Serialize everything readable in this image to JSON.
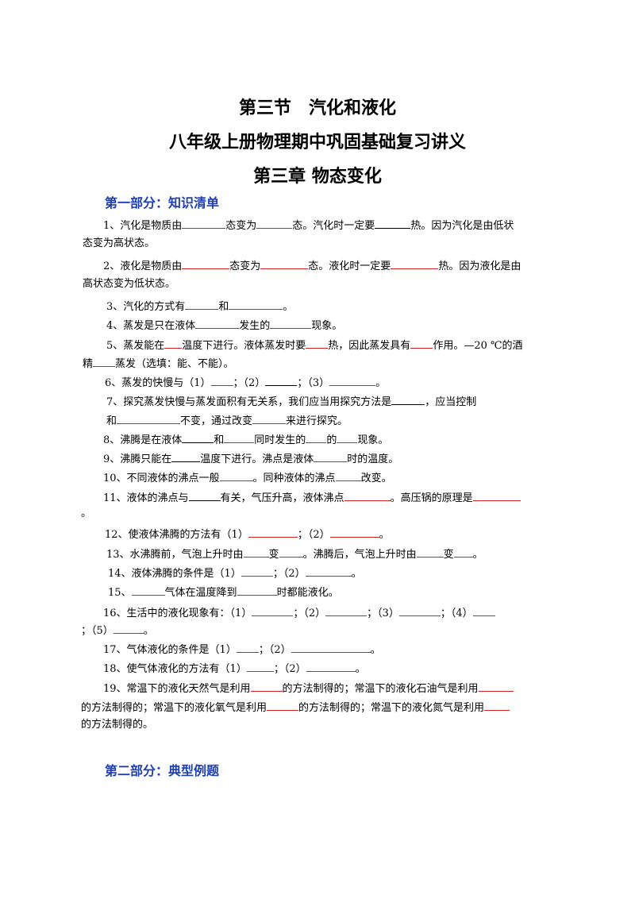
{
  "titles": {
    "t1": "第三节　汽化和液化",
    "t2": "八年级上册物理期中巩固基础复习讲义",
    "t3": "第三章 物态变化"
  },
  "sections": {
    "s1": "第一部分：知识清单",
    "s2": "第二部分：典型例题"
  },
  "q": {
    "q1": {
      "a": "1、汽化是物质由",
      "b": "态变为",
      "c": "态。汽化时一定要",
      "d": "热。因为汽化是由低状",
      "e": "态变为高状态。"
    },
    "q2": {
      "a": "2、液化是物质由",
      "b": "态变为",
      "c": "态。液化时一定要",
      "d": "热。因为液化是由",
      "e": "高状态变为低状态。"
    },
    "q3": {
      "a": "3、汽化的方式有",
      "b": "和",
      "c": "。"
    },
    "q4": {
      "a": "4、蒸发是只在液体",
      "b": "发生的",
      "c": "现象。"
    },
    "q5": {
      "a": "5、蒸发能在",
      "b": "温度下进行。液体蒸发时要",
      "c": "热，因此蒸发具有",
      "d": "作用。—20 ℃的酒",
      "e": "精",
      "f": "蒸发（选填：能、不能）。"
    },
    "q6": {
      "a": "6、蒸发的快慢与（1）",
      "b": "；（2）",
      "c": "；（3）",
      "d": "。"
    },
    "q7": {
      "a": "7、探究蒸发快慢与蒸发面积有无关系，我们应当用探究方法是",
      "b": "，应当控制",
      "c": "和",
      "d": "不变，通过改变",
      "e": "来进行探究。"
    },
    "q8": {
      "a": "8、沸腾是在液体",
      "b": "和",
      "c": "同时发生的",
      "d": "的",
      "e": "现象。"
    },
    "q9": {
      "a": "9、沸腾只能在",
      "b": "温度下进行。沸点是液体",
      "c": "时的温度。"
    },
    "q10": {
      "a": "10、不同液体的沸点一般",
      "b": "。同种液体的沸点",
      "c": "改变。"
    },
    "q11": {
      "a": "11、液体的沸点与",
      "b": "有关，气压升高，液体沸点",
      "c": "。高压锅的原理是",
      "d": "。"
    },
    "q12": {
      "a": "12、使液体沸腾的方法有（1）",
      "b": "；（2）",
      "c": "。"
    },
    "q13": {
      "a": "13、水沸腾前，气泡上升时由",
      "b": "变",
      "c": "。沸腾后，气泡上升时由",
      "d": "变",
      "e": "。"
    },
    "q14": {
      "a": "14、液体沸腾的条件是（1）",
      "b": "；（2）",
      "c": "。"
    },
    "q15": {
      "a": "15、",
      "b": "气体在温度降到",
      "c": "时都能液化。"
    },
    "q16": {
      "a": "16、生活中的液化现象有：（1）",
      "b": "；（2）",
      "c": "；（3）",
      "d": "；（4）",
      "e": "；（5）",
      "f": "。"
    },
    "q17": {
      "a": "17、气体液化的条件是（1）",
      "b": "；（2）",
      "c": "。"
    },
    "q18": {
      "a": "18、使气体液化的方法有（1）",
      "b": "；（2）",
      "c": "。"
    },
    "q19": {
      "a": "19、常温下的液化天然气是利用",
      "b": "的方法制得的；常温下的液化石油气是利用",
      "c": "的方法制得的；常温下的液化氧气是利用",
      "d": "的方法制得的；常温下的液化氮气是利用",
      "e": "的方法制得的。"
    }
  }
}
